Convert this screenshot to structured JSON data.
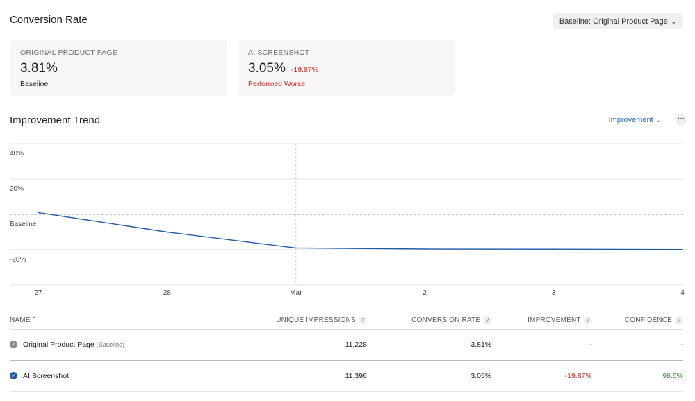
{
  "header": {
    "title": "Conversion Rate",
    "baseline_select": "Baseline: Original Product Page"
  },
  "cards": [
    {
      "label": "ORIGINAL PRODUCT PAGE",
      "value": "3.81%",
      "delta": "",
      "sub": "Baseline"
    },
    {
      "label": "AI SCREENSHOT",
      "value": "3.05%",
      "delta": "-19.87%",
      "sub": "Performed Worse"
    }
  ],
  "trend": {
    "title": "Improvement Trend",
    "metric_select": "Improvement",
    "more": "···"
  },
  "chart_data": {
    "type": "line",
    "x": [
      "27",
      "28",
      "Mar",
      "2",
      "3",
      "4"
    ],
    "series": [
      {
        "name": "AI Screenshot",
        "values": [
          1,
          -10,
          -19,
          -19.6,
          -19.7,
          -19.87
        ]
      }
    ],
    "yticks": [
      {
        "v": 40,
        "label": "40%"
      },
      {
        "v": 20,
        "label": "20%"
      },
      {
        "v": 0,
        "label": "Baseline"
      },
      {
        "v": -20,
        "label": "-20%"
      }
    ],
    "ylim": [
      -40,
      40
    ],
    "colors": {
      "line": "#1f5aa8"
    }
  },
  "table": {
    "headers": [
      "NAME ^",
      "UNIQUE IMPRESSIONS",
      "CONVERSION RATE",
      "IMPROVEMENT",
      "CONFIDENCE"
    ],
    "rows": [
      {
        "name": "Original Product Page",
        "tag": "(Baseline)",
        "impressions": "11,228",
        "rate": "3.81%",
        "improvement": "-",
        "confidence": "-"
      },
      {
        "name": "AI Screenshot",
        "tag": "",
        "impressions": "11,396",
        "rate": "3.05%",
        "improvement": "-19.87%",
        "confidence": "98.5%"
      }
    ]
  }
}
